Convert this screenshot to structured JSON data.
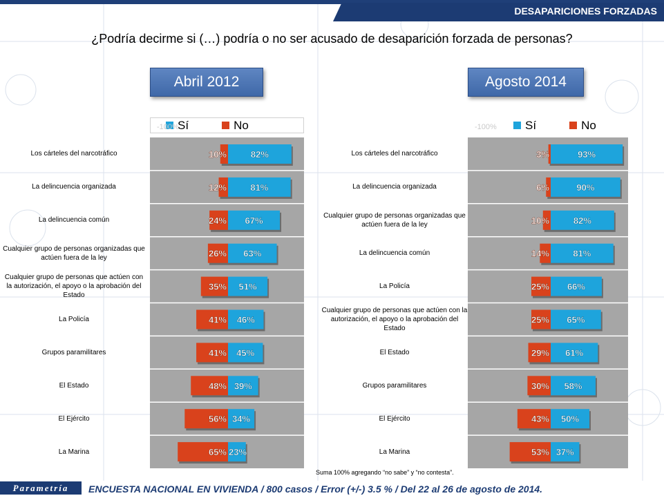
{
  "header": {
    "section_label": "DESAPARICIONES FORZADAS",
    "question": "¿Podría decirme si (…) podría o no ser acusado de desaparición forzada de personas?"
  },
  "legend": {
    "si": "Sí",
    "no": "No"
  },
  "colors": {
    "si": "#1ea4dc",
    "no": "#d9421c",
    "plot_bg": "#a6a6a6",
    "header": "#1c3b73"
  },
  "chart_data": [
    {
      "type": "bar",
      "title": "Abril 2012",
      "categories": [
        "Los cárteles del narcotráfico",
        "La delincuencia organizada",
        "La delincuencia común",
        "Cualquier grupo de personas organizadas que actúen fuera de la ley",
        "Cualquier grupo de personas que actúen con la autorización, el apoyo o la aprobación del Estado",
        "La Policía",
        "Grupos paramilitares",
        "El Estado",
        "El Ejército",
        "La Marina"
      ],
      "series": [
        {
          "name": "Sí",
          "values": [
            82,
            81,
            67,
            63,
            51,
            46,
            45,
            39,
            34,
            23
          ]
        },
        {
          "name": "No",
          "values": [
            10,
            12,
            24,
            26,
            35,
            41,
            41,
            48,
            56,
            65
          ]
        }
      ],
      "value_suffix": "%",
      "axis_label_left": "-100%",
      "layout": "diverging"
    },
    {
      "type": "bar",
      "title": "Agosto 2014",
      "categories": [
        "Los cárteles del narcotráfico",
        "La delincuencia organizada",
        "Cualquier grupo de personas organizadas que actúen fuera de la ley",
        "La delincuencia común",
        "La Policía",
        "Cualquier grupo de personas que actúen con la autorización, el apoyo o la aprobación del Estado",
        "El Estado",
        "Grupos paramilitares",
        "El Ejército",
        "La Marina"
      ],
      "series": [
        {
          "name": "Sí",
          "values": [
            93,
            90,
            82,
            81,
            66,
            65,
            61,
            58,
            50,
            37
          ]
        },
        {
          "name": "No",
          "values": [
            3,
            6,
            10,
            14,
            25,
            25,
            29,
            30,
            43,
            53
          ]
        }
      ],
      "value_suffix": "%",
      "axis_label_left": "-100%",
      "layout": "diverging"
    }
  ],
  "footnote": "Suma 100%  agregando “no sabe” y “no contesta”.",
  "footer": {
    "brand": "Parametría",
    "survey": "ENCUESTA NACIONAL EN VIVIENDA / 800 casos / Error (+/-) 3.5 % / Del 22 al 26 de agosto de 2014."
  }
}
